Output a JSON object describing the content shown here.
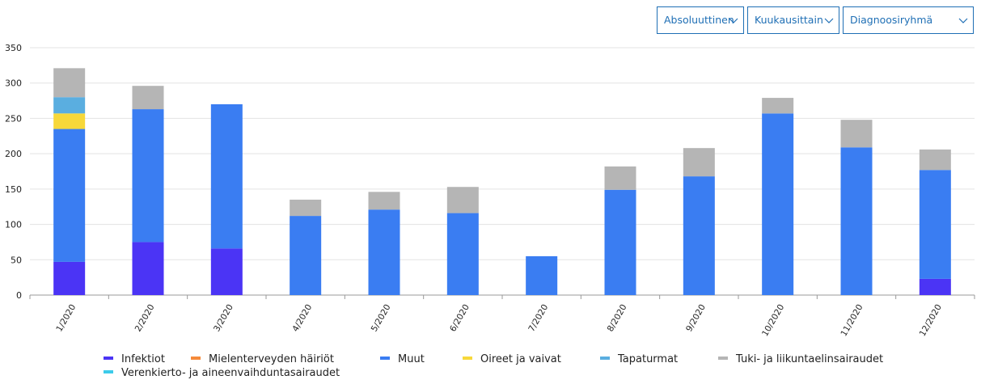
{
  "controls": {
    "scale_label": "Absoluuttinen",
    "period_label": "Kuukausittain",
    "group_label": "Diagnoosiryhmä"
  },
  "chart_data": {
    "type": "bar",
    "stacked": true,
    "categories": [
      "1/2020",
      "2/2020",
      "3/2020",
      "4/2020",
      "5/2020",
      "6/2020",
      "7/2020",
      "8/2020",
      "9/2020",
      "10/2020",
      "11/2020",
      "12/2020"
    ],
    "ylim": [
      0,
      350
    ],
    "yticks": [
      0,
      50,
      100,
      150,
      200,
      250,
      300,
      350
    ],
    "grid": true,
    "legend_position": "bottom",
    "series": [
      {
        "name": "Infektiot",
        "color": "#4b34f5",
        "values": [
          47,
          75,
          66,
          0,
          0,
          0,
          0,
          0,
          0,
          0,
          0,
          23
        ]
      },
      {
        "name": "Mielenterveyden häiriöt",
        "color": "#f58a3a",
        "values": [
          0,
          0,
          0,
          0,
          0,
          0,
          0,
          0,
          0,
          0,
          0,
          0
        ]
      },
      {
        "name": "Muut",
        "color": "#3a7df2",
        "values": [
          188,
          188,
          204,
          112,
          121,
          116,
          55,
          149,
          168,
          257,
          209,
          154
        ]
      },
      {
        "name": "Oireet ja vaivat",
        "color": "#f7d83a",
        "values": [
          22,
          0,
          0,
          0,
          0,
          0,
          0,
          0,
          0,
          0,
          0,
          0
        ]
      },
      {
        "name": "Tapaturmat",
        "color": "#5aaee0",
        "values": [
          23,
          0,
          0,
          0,
          0,
          0,
          0,
          0,
          0,
          0,
          0,
          0
        ]
      },
      {
        "name": "Tuki- ja liikuntaelinsairaudet",
        "color": "#b5b5b5",
        "values": [
          41,
          33,
          0,
          23,
          25,
          37,
          0,
          33,
          40,
          22,
          39,
          29
        ]
      },
      {
        "name": "Verenkierto- ja aineenvaihduntasairaudet",
        "color": "#3ccbea",
        "values": [
          0,
          0,
          0,
          0,
          0,
          0,
          0,
          0,
          0,
          0,
          0,
          0
        ]
      }
    ]
  }
}
